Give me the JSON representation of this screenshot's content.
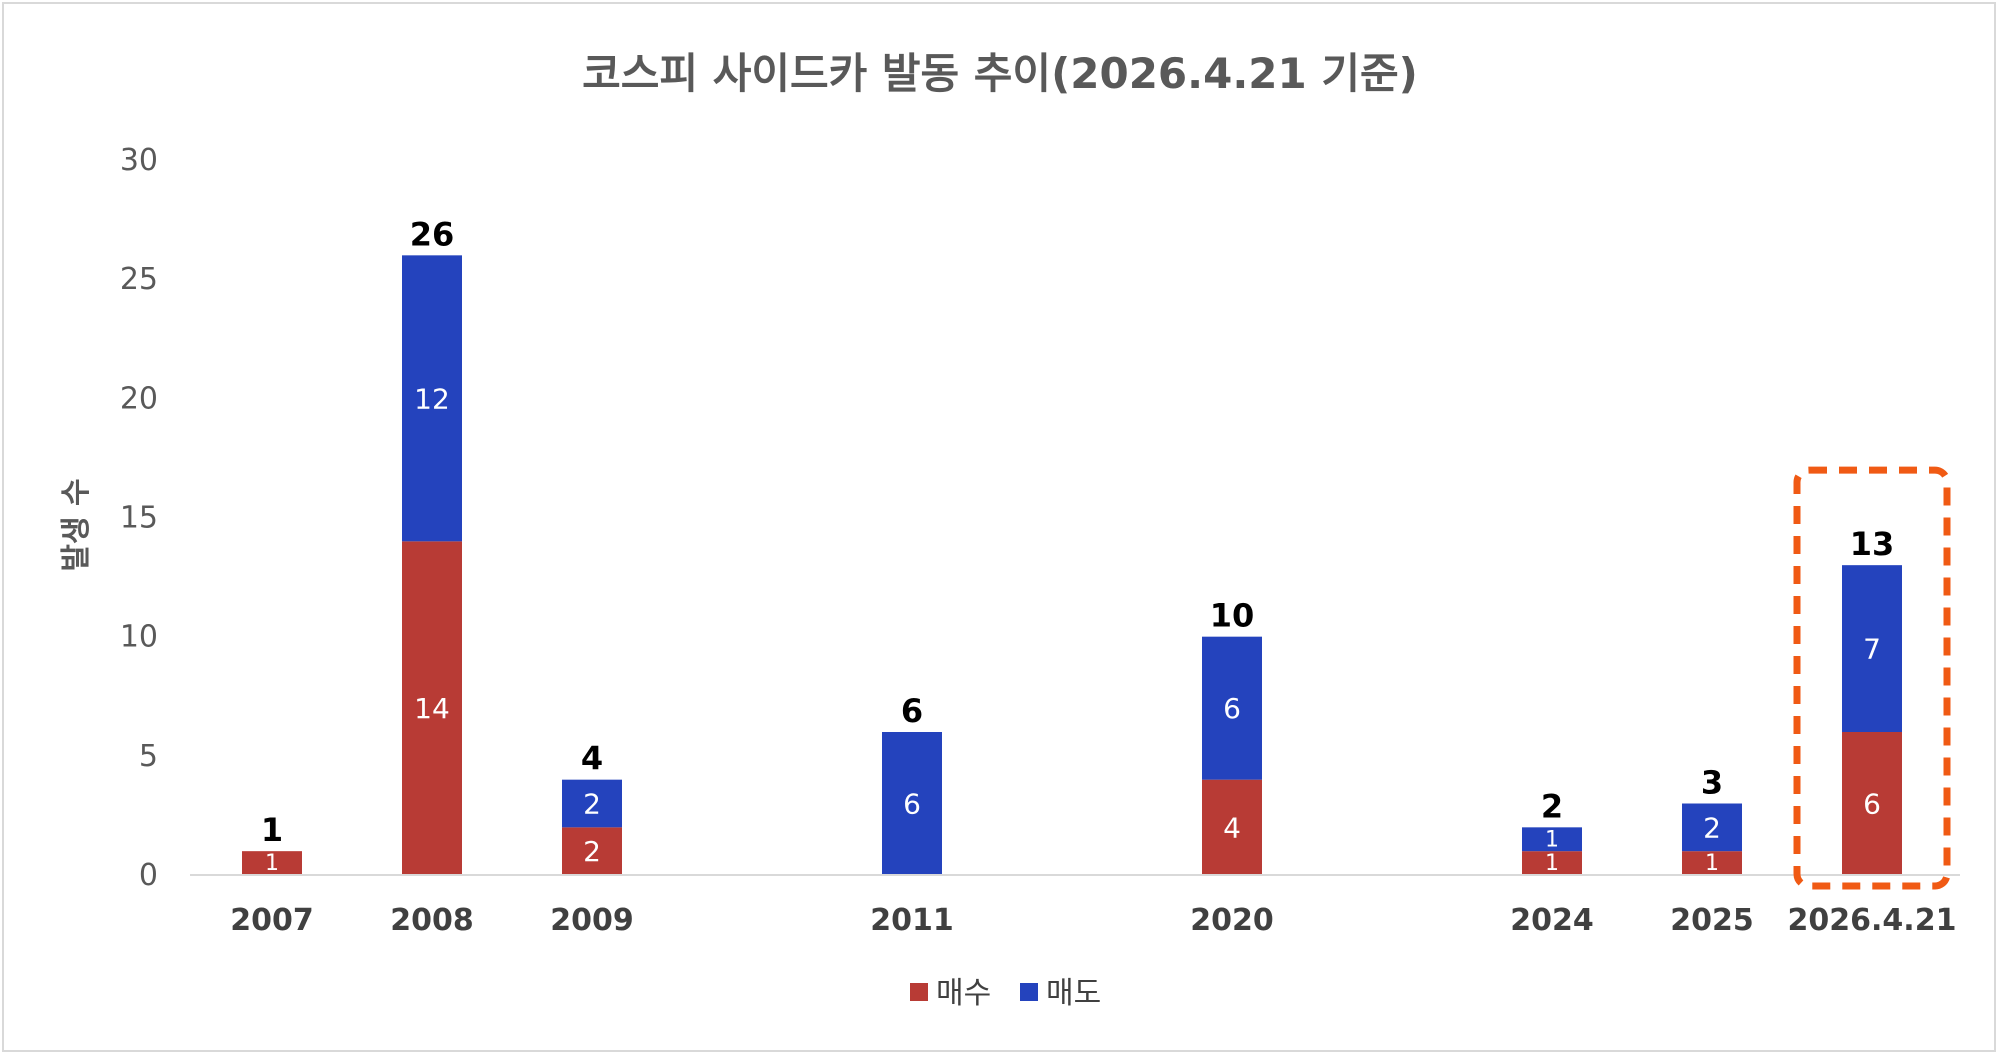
{
  "chart_data": {
    "type": "bar",
    "stacked": true,
    "title": "코스피 사이드카 발동 추이(2026.4.21 기준)",
    "xlabel": "",
    "ylabel": "발생 수",
    "ylim": [
      0,
      30
    ],
    "yticks": [
      0,
      5,
      10,
      15,
      20,
      25,
      30
    ],
    "grid": false,
    "legend_position": "bottom",
    "categories": [
      "2007",
      "2008",
      "2009",
      "2011",
      "2020",
      "2024",
      "2025",
      "2026.4.21"
    ],
    "series": [
      {
        "name": "매수",
        "color": "#b83b35",
        "values": [
          1,
          14,
          2,
          0,
          4,
          1,
          1,
          6
        ]
      },
      {
        "name": "매도",
        "color": "#2443bd",
        "values": [
          0,
          12,
          2,
          6,
          6,
          1,
          2,
          7
        ]
      }
    ],
    "totals": [
      1,
      26,
      4,
      6,
      10,
      2,
      3,
      13
    ],
    "highlight": {
      "category": "2026.4.21",
      "color": "#f05a14",
      "style": "dashed box"
    }
  }
}
